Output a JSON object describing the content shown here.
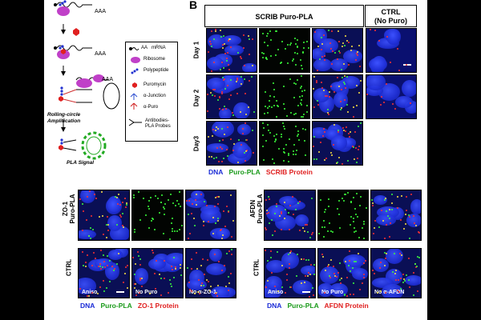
{
  "panel_b_label": "B",
  "schematic": {
    "aaa_1": "AAA",
    "aaa_2": "AAA",
    "aaa_3": "AAA",
    "rca_label": "Rolling-circle Amplification",
    "pla_signal": "PLA Signal",
    "legend": {
      "mrna": "mRNA",
      "aa": "AA",
      "ribosome": "Ribosome",
      "polypeptide": "Polypeptide",
      "puromycin": "Puromycin",
      "alpha_junction": "α-Junction",
      "alpha_puro": "α-Puro",
      "antibodies": "Antibodies-PLA Probes"
    }
  },
  "panel_b": {
    "header_main": "SCRIB Puro-PLA",
    "header_ctrl_line1": "CTRL",
    "header_ctrl_line2": "(No Puro)",
    "rows": [
      "Day 1",
      "Day 2",
      "Day3"
    ],
    "legend": {
      "dna": "DNA",
      "puro": "Puro-PLA",
      "protein": "SCRIB Protein"
    }
  },
  "panel_zo1": {
    "row1_line1": "ZO-1",
    "row1_line2": "Puro-PLA",
    "row2": "CTRL",
    "labels": [
      "Aniso",
      "No Puro",
      "No α-ZO-1"
    ],
    "legend": {
      "dna": "DNA",
      "puro": "Puro-PLA",
      "protein": "ZO-1 Protein"
    }
  },
  "panel_afdn": {
    "row1_line1": "AFDN",
    "row1_line2": "Puro-PLA",
    "row2": "CTRL",
    "labels": [
      "Aniso",
      "No Puro",
      "No α-AFDN"
    ],
    "legend": {
      "dna": "DNA",
      "puro": "Puro-PLA",
      "protein": "AFDN Protein"
    }
  },
  "colors": {
    "dna": "#1a2bd6",
    "puro": "#1a9a1a",
    "protein": "#e02020"
  }
}
